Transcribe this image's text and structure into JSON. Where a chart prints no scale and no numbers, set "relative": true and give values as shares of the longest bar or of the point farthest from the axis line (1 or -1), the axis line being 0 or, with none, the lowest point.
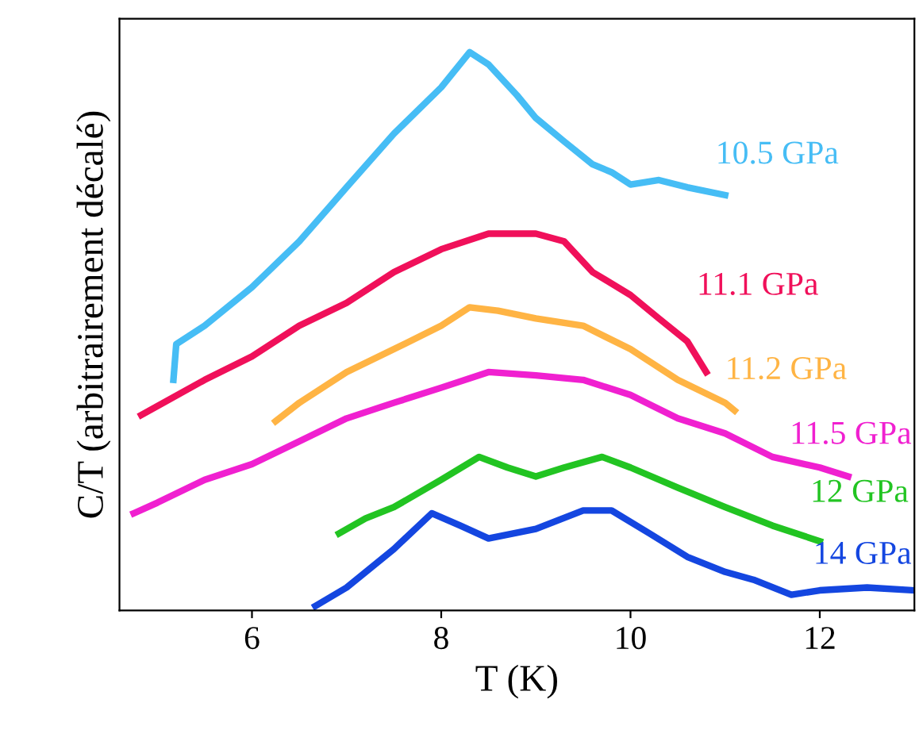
{
  "chart_data": {
    "type": "line",
    "xlabel": "T (K)",
    "ylabel": "C/T (arbitrairement décalé)",
    "relative": true,
    "xlim": [
      4.6,
      13.0
    ],
    "xticks": [
      6,
      8,
      10,
      12
    ],
    "grid": false,
    "legend": false,
    "marker": "none",
    "line_style": "solid",
    "series": [
      {
        "name": "10.5 GPa",
        "color": "#46bdf5",
        "x": [
          5.17,
          5.2,
          5.5,
          6.0,
          6.5,
          7.0,
          7.5,
          8.0,
          8.3,
          8.5,
          8.8,
          9.0,
          9.3,
          9.6,
          9.8,
          10.0,
          10.3,
          10.6,
          11.0
        ],
        "values": [
          0.413,
          0.477,
          0.51,
          0.579,
          0.661,
          0.758,
          0.854,
          0.937,
          1.0,
          0.978,
          0.923,
          0.882,
          0.84,
          0.799,
          0.785,
          0.763,
          0.771,
          0.758,
          0.744
        ]
      },
      {
        "name": "11.1 GPa",
        "color": "#f0105a",
        "x": [
          4.83,
          5.5,
          6.0,
          6.5,
          7.0,
          7.5,
          8.0,
          8.5,
          9.0,
          9.3,
          9.6,
          10.0,
          10.3,
          10.6,
          10.8
        ],
        "values": [
          0.35,
          0.413,
          0.455,
          0.51,
          0.551,
          0.606,
          0.647,
          0.675,
          0.675,
          0.661,
          0.606,
          0.565,
          0.523,
          0.482,
          0.427
        ]
      },
      {
        "name": "11.2 GPa",
        "color": "#ffb444",
        "x": [
          6.25,
          6.5,
          7.0,
          7.5,
          8.0,
          8.3,
          8.6,
          9.0,
          9.5,
          10.0,
          10.5,
          11.0,
          11.1
        ],
        "values": [
          0.339,
          0.372,
          0.427,
          0.468,
          0.51,
          0.543,
          0.537,
          0.523,
          0.51,
          0.468,
          0.413,
          0.372,
          0.358
        ]
      },
      {
        "name": "11.5 GPa",
        "color": "#f020d0",
        "x": [
          4.75,
          5.0,
          5.5,
          6.0,
          6.5,
          7.0,
          7.5,
          8.0,
          8.5,
          9.0,
          9.5,
          10.0,
          10.5,
          11.0,
          11.5,
          12.0,
          12.3
        ],
        "values": [
          0.174,
          0.193,
          0.234,
          0.262,
          0.303,
          0.344,
          0.372,
          0.399,
          0.427,
          0.421,
          0.413,
          0.386,
          0.344,
          0.317,
          0.275,
          0.256,
          0.24
        ]
      },
      {
        "name": "12 GPa",
        "color": "#22c422",
        "x": [
          6.92,
          7.2,
          7.5,
          8.0,
          8.4,
          8.7,
          9.0,
          9.3,
          9.7,
          10.0,
          10.5,
          11.0,
          11.5,
          12.0
        ],
        "values": [
          0.138,
          0.165,
          0.185,
          0.234,
          0.275,
          0.256,
          0.24,
          0.256,
          0.275,
          0.256,
          0.22,
          0.185,
          0.152,
          0.124
        ]
      },
      {
        "name": "14 GPa",
        "color": "#1446e0",
        "x": [
          6.67,
          7.0,
          7.5,
          7.9,
          8.2,
          8.5,
          9.0,
          9.5,
          9.8,
          10.2,
          10.6,
          11.0,
          11.3,
          11.7,
          12.0,
          12.5,
          13.0
        ],
        "values": [
          0.008,
          0.041,
          0.11,
          0.174,
          0.152,
          0.129,
          0.146,
          0.179,
          0.179,
          0.138,
          0.096,
          0.069,
          0.055,
          0.028,
          0.036,
          0.041,
          0.036
        ]
      }
    ]
  }
}
